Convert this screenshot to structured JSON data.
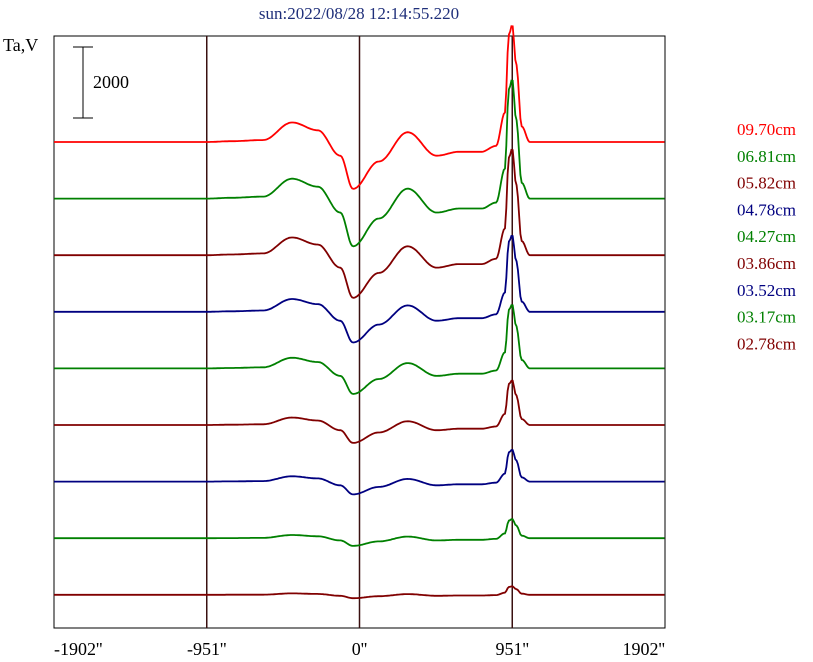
{
  "chart_data": {
    "type": "line",
    "title": "sun:2022/08/28 12:14:55.220",
    "ylabel": "Ta,V",
    "scale_bar_label": "2000",
    "scale_bar_value": 2000,
    "x_ticks": [
      {
        "value": -1902,
        "label": "-1902''"
      },
      {
        "value": -951,
        "label": "-951''"
      },
      {
        "value": 0,
        "label": "0''"
      },
      {
        "value": 951,
        "label": "951''"
      },
      {
        "value": 1902,
        "label": "1902''"
      }
    ],
    "xlim": [
      -1902,
      1902
    ],
    "vertical_lines": [
      -951,
      0,
      951
    ],
    "series_shape": {
      "x": [
        -1902,
        -1100,
        -951,
        -800,
        -600,
        -420,
        -260,
        -120,
        -40,
        120,
        300,
        480,
        620,
        760,
        850,
        905,
        930,
        951,
        975,
        1010,
        1060,
        1150,
        1902
      ],
      "y": [
        0,
        0,
        0,
        40,
        100,
        1000,
        600,
        -700,
        -2400,
        -1000,
        500,
        -700,
        -500,
        -500,
        -200,
        1500,
        5500,
        6000,
        4000,
        800,
        0,
        0,
        0
      ]
    },
    "series": [
      {
        "name": "09.70cm",
        "color": "#ff0000",
        "scale": 0.55
      },
      {
        "name": "06.81cm",
        "color": "#008000",
        "scale": 0.56
      },
      {
        "name": "05.82cm",
        "color": "#800000",
        "scale": 0.5
      },
      {
        "name": "04.78cm",
        "color": "#000080",
        "scale": 0.36
      },
      {
        "name": "04.27cm",
        "color": "#008000",
        "scale": 0.3
      },
      {
        "name": "03.86cm",
        "color": "#800000",
        "scale": 0.21
      },
      {
        "name": "03.52cm",
        "color": "#000080",
        "scale": 0.15
      },
      {
        "name": "03.17cm",
        "color": "#008000",
        "scale": 0.09
      },
      {
        "name": "02.78cm",
        "color": "#800000",
        "scale": 0.04
      }
    ],
    "grid": false,
    "legend_position": "right"
  }
}
